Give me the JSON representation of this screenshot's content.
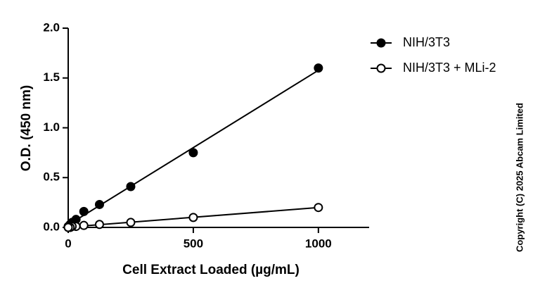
{
  "chart_data": {
    "type": "scatter",
    "x_label": "Cell Extract Loaded (µg/mL)",
    "y_label": "O.D. (450 nm)",
    "copyright": "Copyright (C) 2025 Abcam Limited",
    "x": [
      1000,
      500,
      250,
      125,
      62.5,
      31.25,
      15.63,
      7.81,
      0
    ],
    "series": [
      {
        "name": "NIH/3T3",
        "color": "#000000",
        "marker": "filled",
        "values": [
          1.6,
          0.75,
          0.41,
          0.23,
          0.16,
          0.08,
          0.05,
          0.03,
          0.01
        ]
      },
      {
        "name": "NIH/3T3 + MLi-2",
        "color": "#000000",
        "marker": "open",
        "values": [
          0.2,
          0.1,
          0.05,
          0.03,
          0.02,
          0.01,
          0.01,
          0.0,
          0.0
        ]
      }
    ],
    "fit_lines": true,
    "xlim": [
      0,
      1200
    ],
    "xticks": [
      0,
      500,
      1000
    ],
    "ylim": [
      0,
      2
    ],
    "yticks": [
      {
        "value": 0,
        "label": "0.0"
      },
      {
        "value": 0.5,
        "label": "0.5"
      },
      {
        "value": 1,
        "label": "1.0"
      },
      {
        "value": 1.5,
        "label": "1.5"
      },
      {
        "value": 2,
        "label": "2.0"
      }
    ],
    "legend": "top-right"
  }
}
